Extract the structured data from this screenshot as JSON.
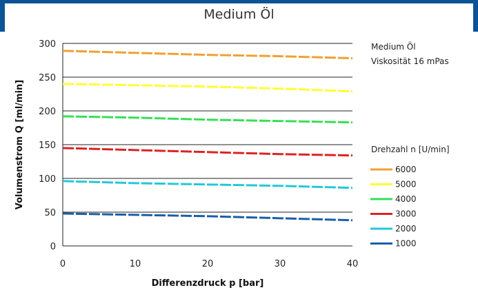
{
  "header": {
    "title": "Medium Öl"
  },
  "info": {
    "line1": "Medium Öl",
    "line2": "Viskosität 16 mPas",
    "legend_title": "Drehzahl n [U/min]"
  },
  "colors": {
    "accent": "#0b5394"
  },
  "chart_data": {
    "type": "line",
    "xlabel": "Differenzdruck p [bar]",
    "ylabel": "Volumenstrom Q [ml/min]",
    "xlim": [
      0,
      40
    ],
    "ylim": [
      0,
      300
    ],
    "xticks": [
      0,
      10,
      20,
      30,
      40
    ],
    "yticks": [
      0,
      50,
      100,
      150,
      200,
      250,
      300
    ],
    "grid": "horizontal",
    "legend_title": "Drehzahl n [U/min]",
    "legend_position": "right",
    "x": [
      0,
      10,
      20,
      30,
      40
    ],
    "series": [
      {
        "name": "6000",
        "color": "#f0a030",
        "values": [
          289,
          286,
          283,
          281,
          278
        ]
      },
      {
        "name": "5000",
        "color": "#ffff33",
        "values": [
          240,
          238,
          236,
          233,
          229
        ]
      },
      {
        "name": "4000",
        "color": "#33e055",
        "values": [
          192,
          190,
          187,
          185,
          183
        ]
      },
      {
        "name": "3000",
        "color": "#dd2222",
        "values": [
          145,
          142,
          139,
          136,
          134
        ]
      },
      {
        "name": "2000",
        "color": "#22c8d8",
        "values": [
          96,
          93,
          91,
          89,
          86
        ]
      },
      {
        "name": "1000",
        "color": "#1a5ea8",
        "values": [
          48,
          46,
          44,
          41,
          38
        ]
      }
    ]
  }
}
